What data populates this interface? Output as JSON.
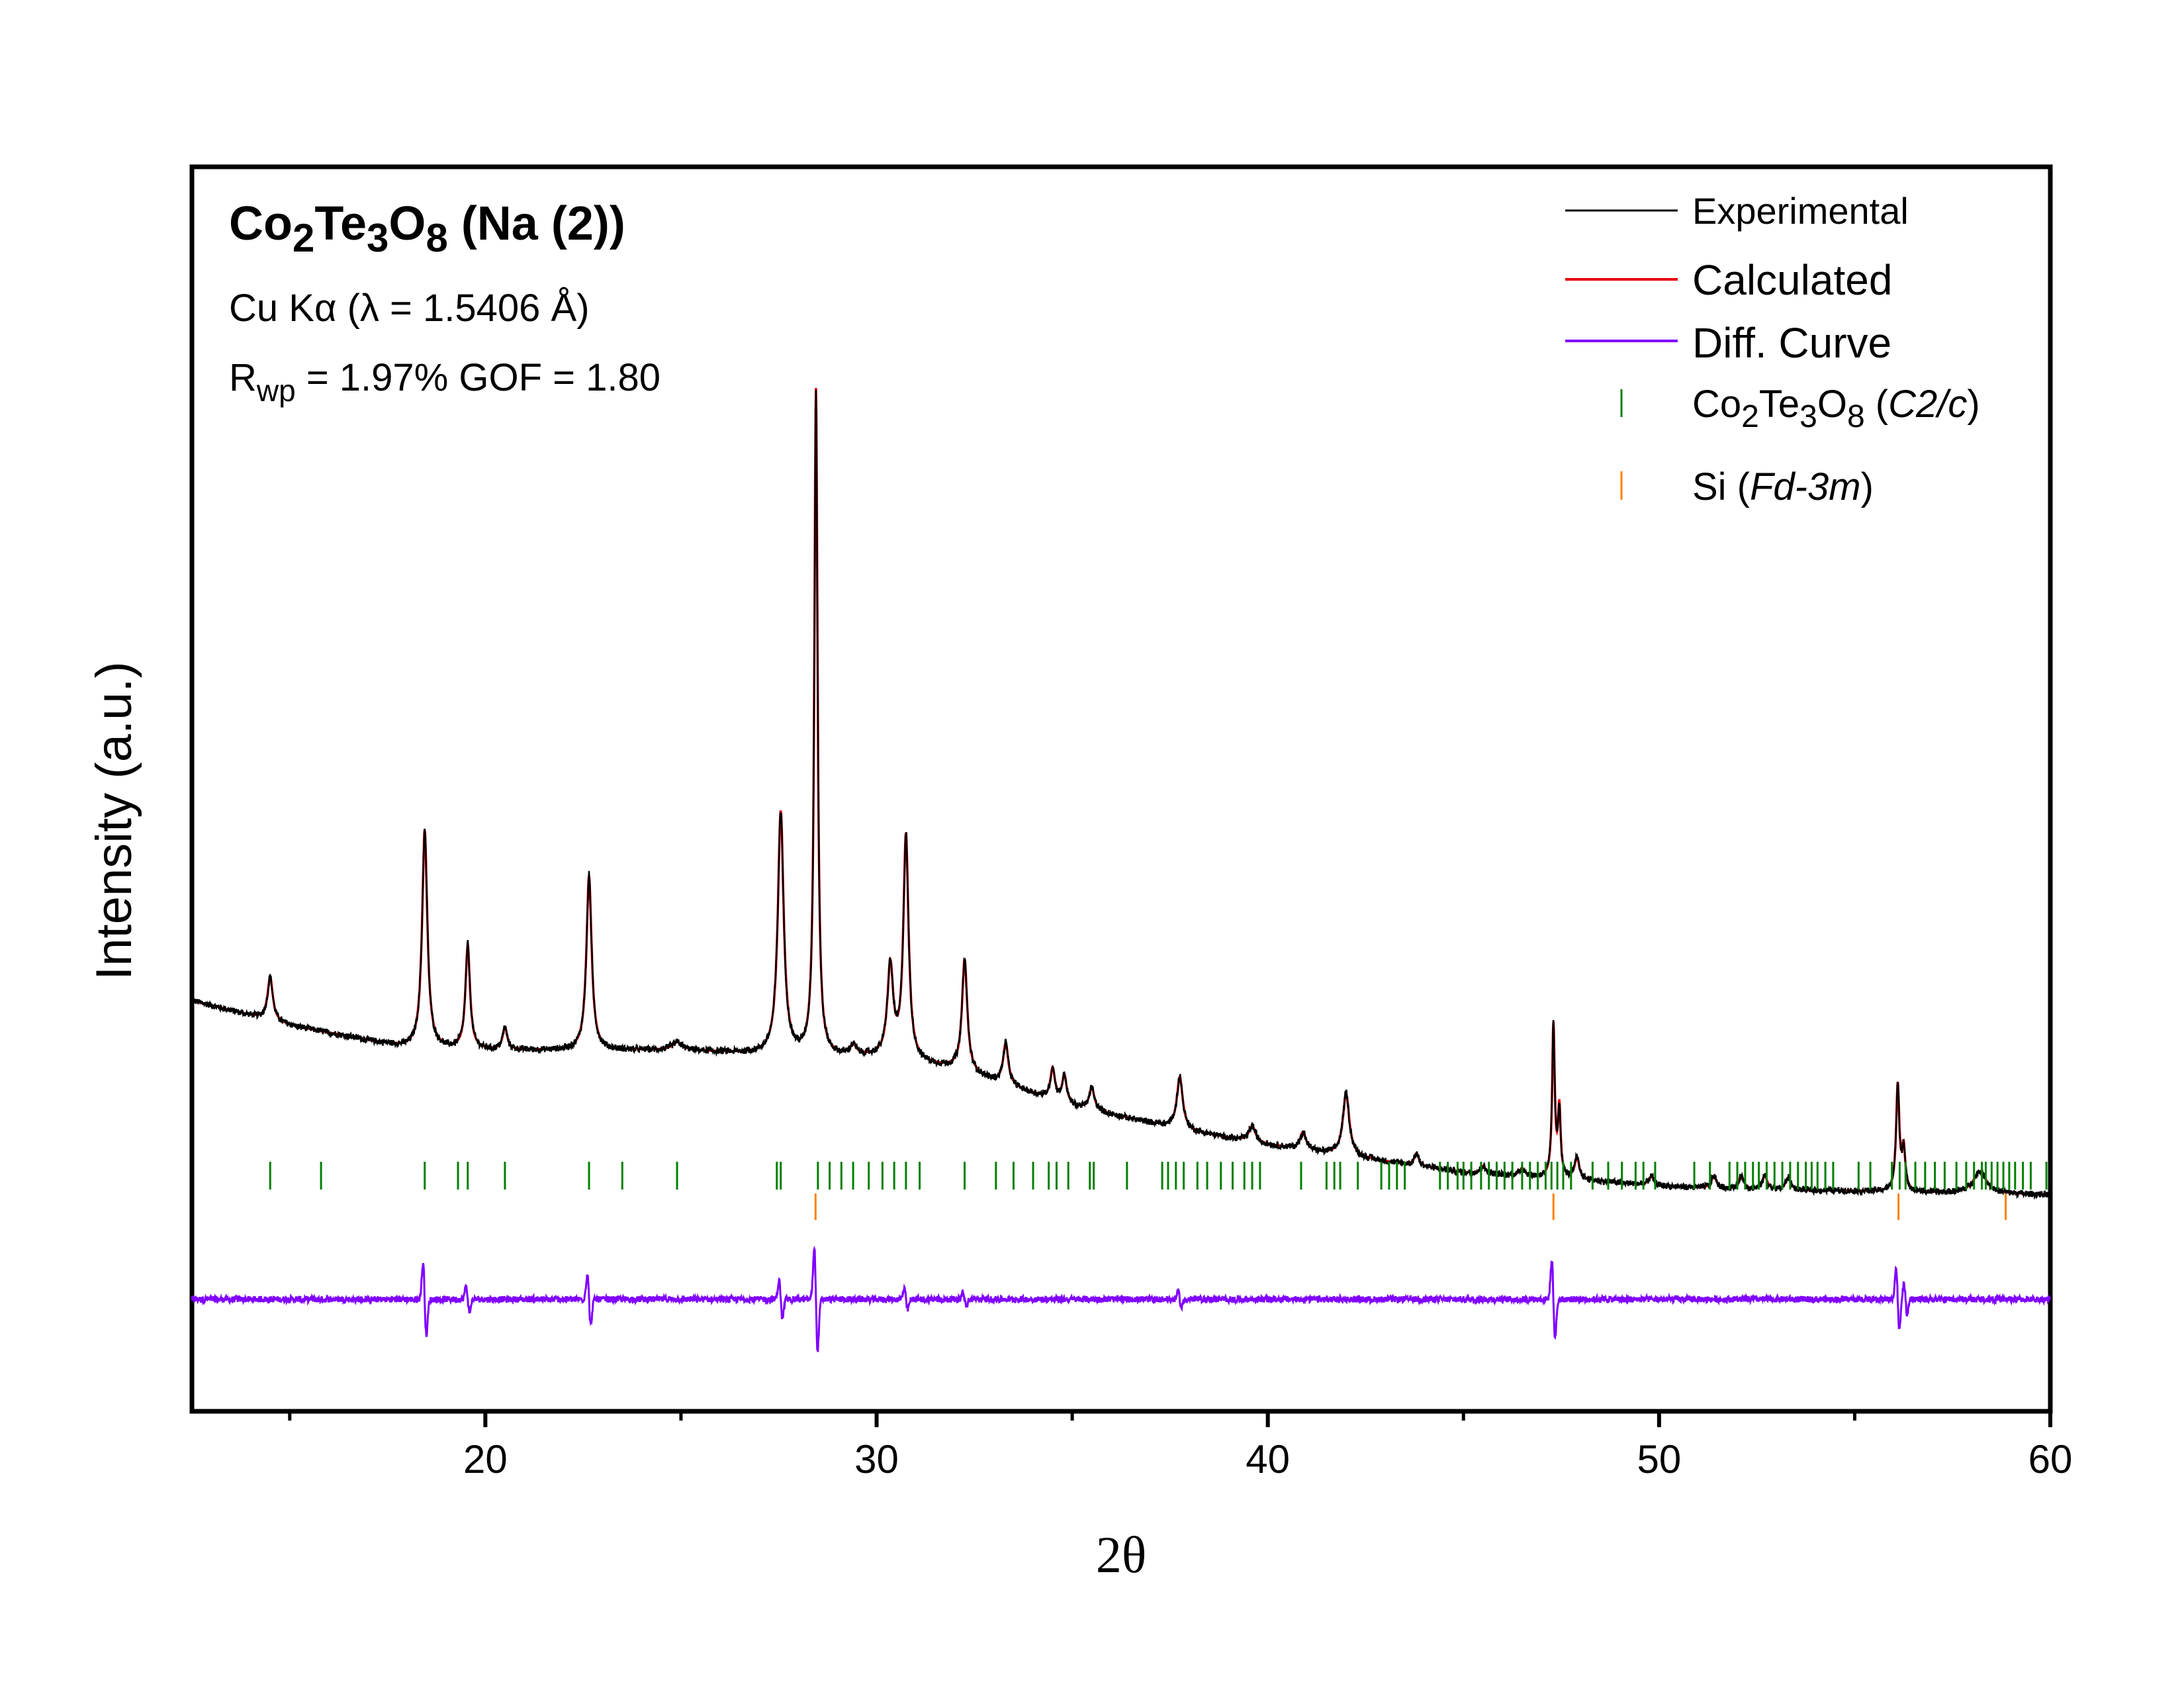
{
  "chart_data": {
    "type": "line",
    "title_main": "Co",
    "title_sub1": "2",
    "title_te": "Te",
    "title_sub2": "3",
    "title_o": "O",
    "title_sub3": "8",
    "title_suffix": " (Na (2))",
    "radiation": "Cu Kα (λ = 1.5406 Å)",
    "fit_r": "R",
    "fit_r_sub": "wp",
    "fit_stats": " = 1.97%  GOF = 1.80",
    "xlabel": "2θ",
    "ylabel": "Intensity (a.u.)",
    "xlim": [
      12.5,
      60
    ],
    "x_ticks": [
      20,
      30,
      40,
      50,
      60
    ],
    "x_tick_labels": [
      "20",
      "30",
      "40",
      "50",
      "60"
    ],
    "x_minor_ticks": [
      15,
      25,
      35,
      45,
      55
    ],
    "ylim": [
      0,
      1
    ],
    "legend_position": "top-right",
    "legend": {
      "experimental": "Experimental",
      "calculated": "Calculated",
      "diff": "Diff. Curve",
      "phase1_a": "Co",
      "phase1_s1": "2",
      "phase1_b": "Te",
      "phase1_s2": "3",
      "phase1_c": "O",
      "phase1_s3": "8",
      "phase1_d": " (",
      "phase1_sg": "C2/c",
      "phase1_e": ")",
      "phase2_a": "Si (",
      "phase2_sg": "Fd-3m",
      "phase2_e": ")"
    },
    "colors": {
      "experimental": "#000000",
      "calculated": "#e8000b",
      "diff": "#8000ff",
      "phase1_ticks": "#008000",
      "phase2_ticks": "#ff8000"
    },
    "background": {
      "x": [
        12.5,
        15,
        18,
        20,
        22,
        25,
        28,
        30,
        32,
        35,
        38,
        40,
        42,
        45,
        48,
        50,
        52,
        55,
        58,
        60
      ],
      "y": [
        0.33,
        0.31,
        0.292,
        0.29,
        0.29,
        0.29,
        0.285,
        0.284,
        0.275,
        0.245,
        0.225,
        0.214,
        0.205,
        0.192,
        0.186,
        0.181,
        0.178,
        0.177,
        0.175,
        0.174
      ]
    },
    "peaks": [
      {
        "x": 14.5,
        "h": 0.035,
        "w": 0.08
      },
      {
        "x": 18.45,
        "h": 0.175,
        "w": 0.08
      },
      {
        "x": 19.55,
        "h": 0.083,
        "w": 0.07
      },
      {
        "x": 20.5,
        "h": 0.018,
        "w": 0.07
      },
      {
        "x": 22.65,
        "h": 0.14,
        "w": 0.08
      },
      {
        "x": 24.9,
        "h": 0.006,
        "w": 0.15
      },
      {
        "x": 27.55,
        "h": 0.195,
        "w": 0.09
      },
      {
        "x": 28.45,
        "h": 0.535,
        "w": 0.05
      },
      {
        "x": 29.4,
        "h": 0.008,
        "w": 0.1
      },
      {
        "x": 30.35,
        "h": 0.073,
        "w": 0.09
      },
      {
        "x": 30.75,
        "h": 0.18,
        "w": 0.08
      },
      {
        "x": 32.25,
        "h": 0.09,
        "w": 0.08
      },
      {
        "x": 33.3,
        "h": 0.033,
        "w": 0.08
      },
      {
        "x": 34.5,
        "h": 0.025,
        "w": 0.07
      },
      {
        "x": 34.8,
        "h": 0.022,
        "w": 0.07
      },
      {
        "x": 35.5,
        "h": 0.018,
        "w": 0.08
      },
      {
        "x": 37.75,
        "h": 0.042,
        "w": 0.09
      },
      {
        "x": 39.6,
        "h": 0.013,
        "w": 0.1
      },
      {
        "x": 40.9,
        "h": 0.014,
        "w": 0.09
      },
      {
        "x": 42.0,
        "h": 0.05,
        "w": 0.1
      },
      {
        "x": 43.8,
        "h": 0.01,
        "w": 0.07
      },
      {
        "x": 45.5,
        "h": 0.006,
        "w": 0.08
      },
      {
        "x": 46.5,
        "h": 0.006,
        "w": 0.08
      },
      {
        "x": 47.3,
        "h": 0.122,
        "w": 0.04
      },
      {
        "x": 47.45,
        "h": 0.055,
        "w": 0.04
      },
      {
        "x": 47.9,
        "h": 0.017,
        "w": 0.07
      },
      {
        "x": 49.8,
        "h": 0.007,
        "w": 0.08
      },
      {
        "x": 51.4,
        "h": 0.01,
        "w": 0.08
      },
      {
        "x": 52.1,
        "h": 0.011,
        "w": 0.08
      },
      {
        "x": 52.7,
        "h": 0.011,
        "w": 0.08
      },
      {
        "x": 53.3,
        "h": 0.01,
        "w": 0.08
      },
      {
        "x": 56.1,
        "h": 0.085,
        "w": 0.05
      },
      {
        "x": 56.25,
        "h": 0.033,
        "w": 0.05
      },
      {
        "x": 58.2,
        "h": 0.018,
        "w": 0.2
      }
    ],
    "noise": 0.0025,
    "diff_baseline": 0.09,
    "diff_noise": 0.0025,
    "diff_features": [
      {
        "x": 18.45,
        "a": 0.028
      },
      {
        "x": 19.55,
        "a": 0.01
      },
      {
        "x": 22.65,
        "a": 0.02
      },
      {
        "x": 27.55,
        "a": 0.015
      },
      {
        "x": 28.45,
        "a": 0.04
      },
      {
        "x": 30.75,
        "a": 0.008
      },
      {
        "x": 32.25,
        "a": 0.006
      },
      {
        "x": 37.75,
        "a": 0.006
      },
      {
        "x": 47.3,
        "a": 0.03
      },
      {
        "x": 56.1,
        "a": 0.024
      },
      {
        "x": 56.3,
        "a": 0.012
      }
    ],
    "phase1_ticks": [
      14.5,
      15.8,
      18.45,
      19.3,
      19.55,
      20.5,
      22.65,
      23.5,
      24.9,
      27.45,
      27.55,
      28.5,
      28.8,
      29.1,
      29.4,
      29.8,
      30.15,
      30.45,
      30.75,
      31.1,
      32.25,
      33.05,
      33.5,
      34.0,
      34.4,
      34.6,
      34.9,
      35.45,
      35.55,
      36.4,
      37.3,
      37.45,
      37.65,
      37.85,
      38.2,
      38.45,
      38.8,
      39.1,
      39.4,
      39.6,
      39.8,
      40.85,
      41.5,
      41.7,
      41.85,
      42.3,
      42.9,
      43.1,
      43.3,
      43.5,
      44.4,
      44.6,
      44.85,
      45.0,
      45.2,
      45.45,
      45.65,
      45.85,
      46.05,
      46.25,
      46.5,
      46.7,
      46.9,
      47.1,
      47.25,
      47.4,
      47.55,
      47.75,
      48.3,
      48.7,
      49.05,
      49.4,
      49.6,
      49.9,
      50.9,
      51.3,
      51.8,
      52.0,
      52.2,
      52.4,
      52.55,
      52.75,
      52.95,
      53.15,
      53.35,
      53.55,
      53.75,
      53.9,
      54.05,
      54.25,
      54.45,
      55.1,
      55.4,
      55.95,
      56.15,
      56.3,
      56.55,
      56.8,
      57.05,
      57.3,
      57.6,
      57.85,
      58.05,
      58.25,
      58.35,
      58.5,
      58.65,
      58.8,
      58.95,
      59.1,
      59.3,
      59.5,
      59.9
    ],
    "phase2_ticks": [
      28.44,
      47.3,
      56.12,
      58.86
    ]
  }
}
